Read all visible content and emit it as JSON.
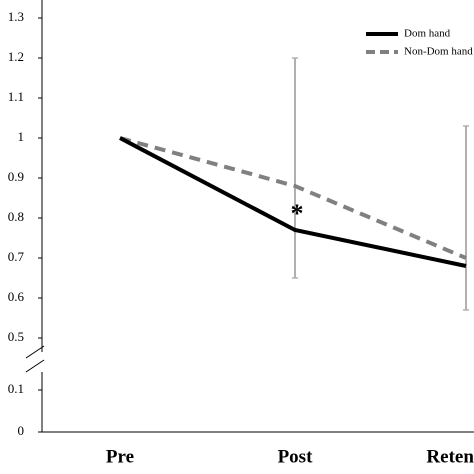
{
  "chart_data": {
    "type": "line",
    "categories": [
      "Pre",
      "Post",
      "Retention"
    ],
    "series": [
      {
        "name": "Dom hand",
        "color": "#000000",
        "dash": false,
        "values": [
          1,
          0.77,
          0.68
        ]
      },
      {
        "name": "Non-Dom hand",
        "color": "#808080",
        "dash": true,
        "values": [
          1,
          0.88,
          0.7
        ]
      }
    ],
    "error_bars": [
      {
        "category": "Post",
        "low": 0.65,
        "high": 1.2
      },
      {
        "category": "Retention",
        "low": 0.57,
        "high": 1.03
      }
    ],
    "annotations": [
      {
        "text": "*",
        "category": "Post",
        "y": 0.82
      }
    ],
    "ylim": [
      0.5,
      1.3
    ],
    "yticks": [
      0.5,
      0.6,
      0.7,
      0.8,
      0.9,
      1,
      1.1,
      1.2,
      1.3
    ],
    "y_break": {
      "ylim": [
        0,
        0.1
      ],
      "yticks": [
        0,
        0.1
      ]
    },
    "legend": "top-right"
  }
}
